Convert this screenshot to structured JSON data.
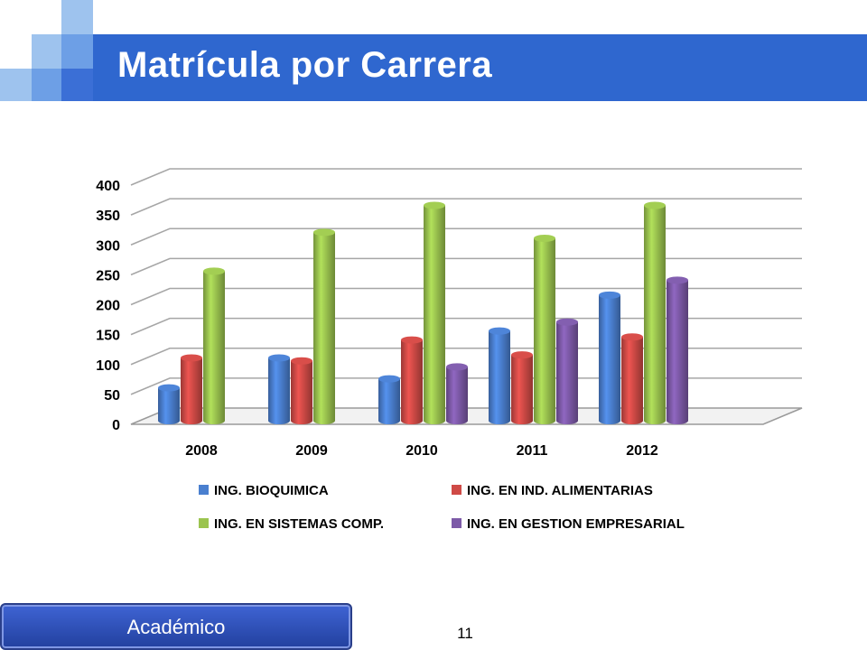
{
  "slide": {
    "title": "Matrícula por Carrera",
    "footer_label": "Académico",
    "page_number": "11"
  },
  "colors": {
    "title_bar": "#2f67cf",
    "series": [
      "#4a7fcf",
      "#cf4a46",
      "#9bc44f",
      "#7d5aa8"
    ]
  },
  "chart_data": {
    "type": "bar",
    "categories": [
      "2008",
      "2009",
      "2010",
      "2011",
      "2012"
    ],
    "series": [
      {
        "name": "ING. BIOQUIMICA",
        "values": [
          55,
          105,
          70,
          150,
          210
        ]
      },
      {
        "name": "ING. EN IND. ALIMENTARIAS",
        "values": [
          105,
          100,
          135,
          110,
          140
        ]
      },
      {
        "name": "ING. EN SISTEMAS COMP.",
        "values": [
          250,
          315,
          360,
          305,
          360
        ]
      },
      {
        "name": "ING. EN GESTION EMPRESARIAL",
        "values": [
          null,
          null,
          90,
          165,
          235
        ]
      }
    ],
    "yticks": [
      "0",
      "50",
      "100",
      "150",
      "200",
      "250",
      "300",
      "350",
      "400"
    ],
    "ylim": [
      0,
      400
    ],
    "grid": true,
    "legend_position": "bottom"
  }
}
